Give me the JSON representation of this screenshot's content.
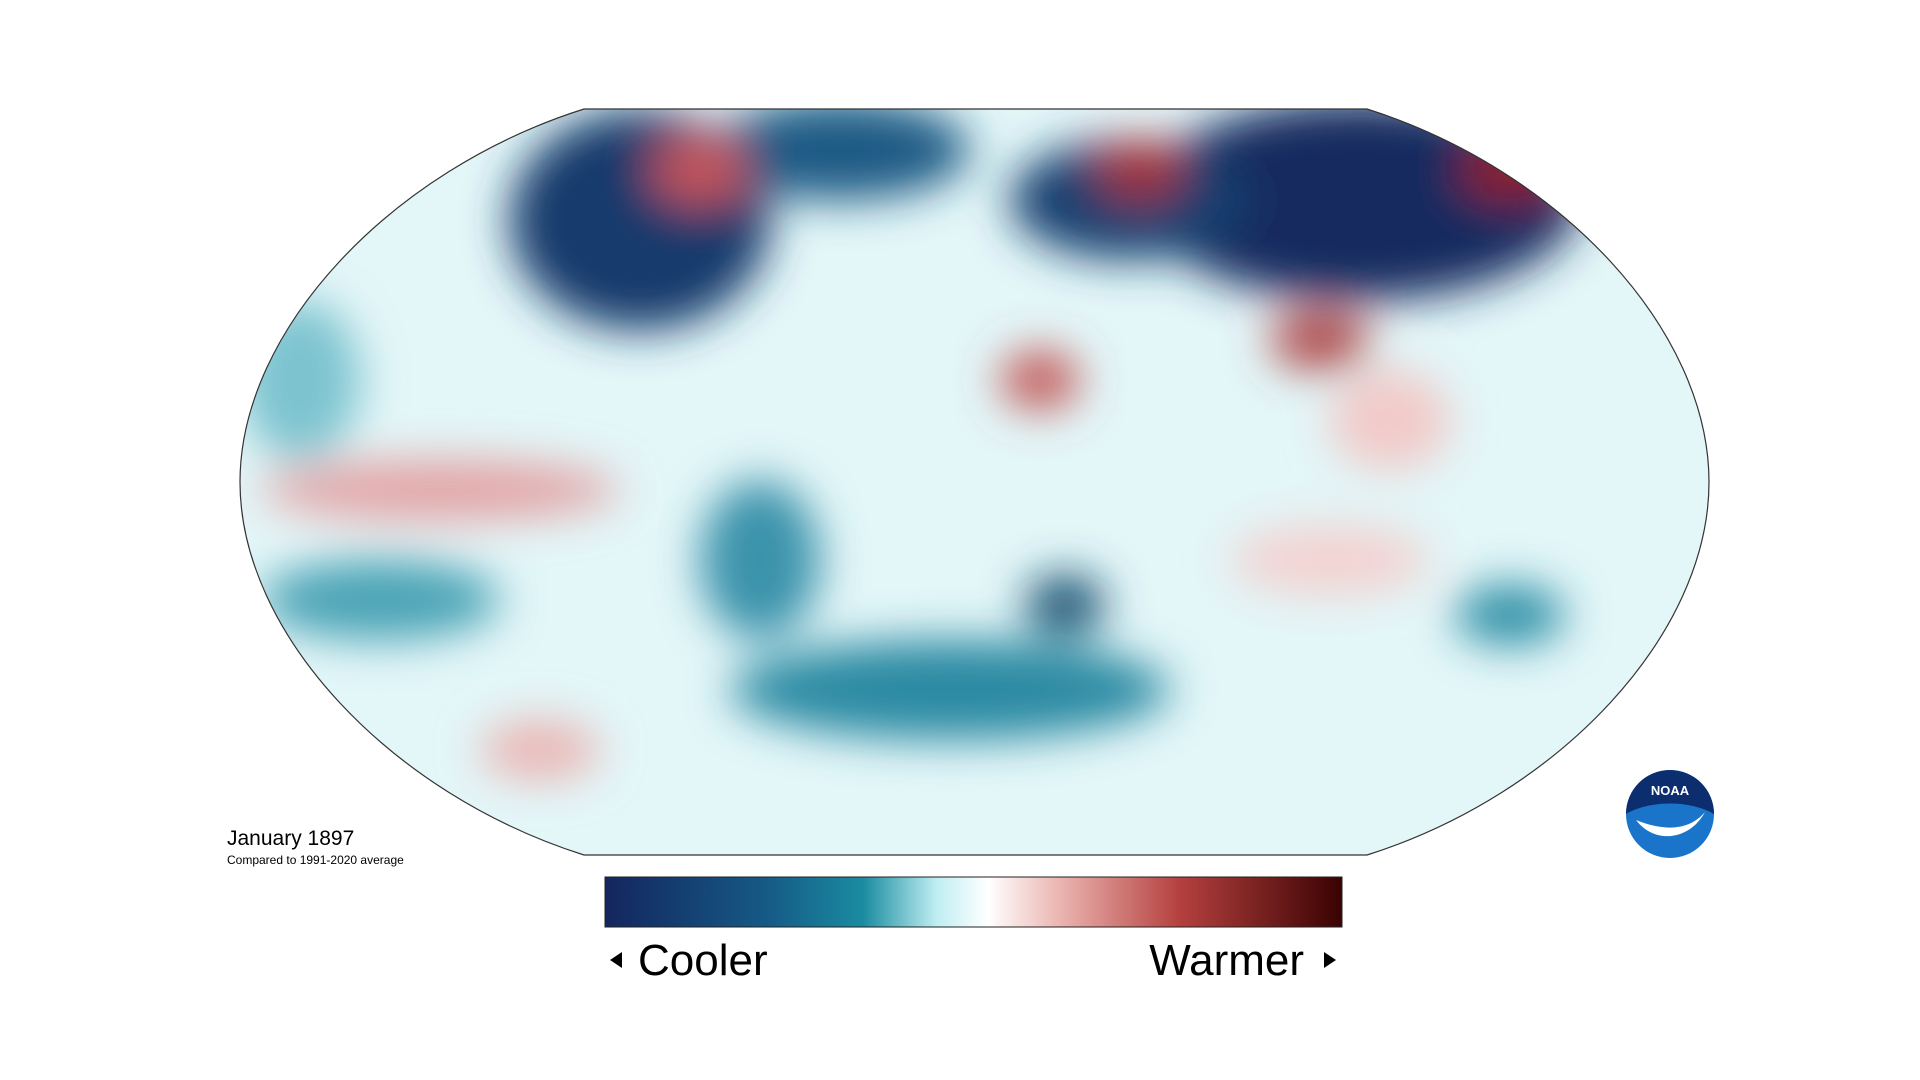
{
  "caption": {
    "title": "January 1897",
    "subtitle": "Compared to 1991-2020 average"
  },
  "legend": {
    "low": "Cooler",
    "high": "Warmer"
  },
  "logo": {
    "text": "NOAA"
  }
}
